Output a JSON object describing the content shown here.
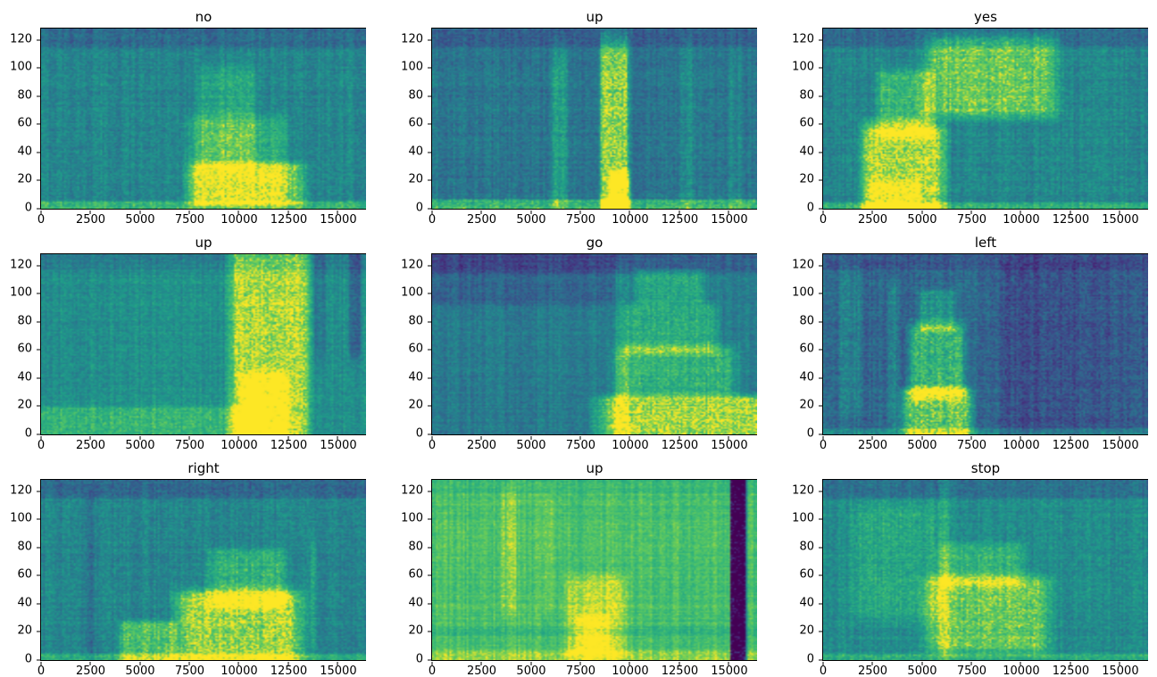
{
  "figure": {
    "background": "#ffffff",
    "text_color": "#000000"
  },
  "chart_data": {
    "type": "heatmap",
    "colormap": "viridis",
    "colors": {
      "low": "#440154",
      "mid": "#21918c",
      "high": "#fde725"
    },
    "layout": {
      "rows": 3,
      "cols": 3,
      "grid": false,
      "legend": "none"
    },
    "xlim": [
      0,
      16400
    ],
    "ylim": [
      0,
      128
    ],
    "xticks": [
      0,
      2500,
      5000,
      7500,
      10000,
      12500,
      15000
    ],
    "yticks": [
      0,
      20,
      40,
      60,
      80,
      100,
      120
    ],
    "xlabel": "",
    "ylabel": "",
    "panels": [
      {
        "title": "no",
        "base": 0.52,
        "noise": 0.09,
        "features": [
          [
            0,
            16400,
            116,
            128,
            -0.13
          ],
          [
            0,
            16400,
            0,
            5,
            0.22
          ],
          [
            7800,
            12000,
            8,
            60,
            0.18
          ],
          [
            8200,
            10600,
            35,
            95,
            0.15
          ],
          [
            8000,
            12800,
            5,
            30,
            0.32
          ]
        ]
      },
      {
        "title": "up",
        "base": 0.44,
        "noise": 0.09,
        "features": [
          [
            0,
            16400,
            116,
            128,
            -0.1
          ],
          [
            0,
            16400,
            0,
            6,
            0.3
          ],
          [
            8600,
            9800,
            5,
            110,
            0.45
          ],
          [
            9000,
            9900,
            0,
            25,
            0.3
          ],
          [
            6100,
            6800,
            10,
            105,
            0.18
          ],
          [
            12600,
            13200,
            0,
            110,
            0.1
          ],
          [
            15000,
            15600,
            0,
            110,
            0.08
          ]
        ]
      },
      {
        "title": "yes",
        "base": 0.52,
        "noise": 0.09,
        "features": [
          [
            0,
            16400,
            116,
            128,
            -0.13
          ],
          [
            2300,
            5800,
            0,
            55,
            0.42
          ],
          [
            3000,
            5300,
            55,
            95,
            0.25
          ],
          [
            5800,
            11200,
            70,
            118,
            0.33
          ],
          [
            0,
            16400,
            0,
            4,
            0.2
          ],
          [
            2500,
            4700,
            0,
            18,
            0.15
          ]
        ]
      },
      {
        "title": "up",
        "base": 0.56,
        "noise": 0.08,
        "features": [
          [
            0,
            16400,
            118,
            128,
            -0.08
          ],
          [
            9900,
            13200,
            0,
            126,
            0.38
          ],
          [
            10300,
            12300,
            0,
            40,
            0.2
          ],
          [
            0,
            10000,
            0,
            18,
            0.18
          ],
          [
            15600,
            16100,
            60,
            128,
            -0.18
          ],
          [
            13800,
            14300,
            60,
            128,
            -0.1
          ]
        ]
      },
      {
        "title": "go",
        "base": 0.47,
        "noise": 0.08,
        "features": [
          [
            0,
            16400,
            116,
            128,
            -0.12
          ],
          [
            0,
            9000,
            95,
            128,
            -0.1
          ],
          [
            9200,
            16400,
            0,
            25,
            0.45
          ],
          [
            9800,
            14800,
            30,
            60,
            0.25
          ],
          [
            10200,
            14000,
            60,
            90,
            0.22
          ],
          [
            10500,
            13500,
            95,
            115,
            0.2
          ],
          [
            9300,
            9900,
            0,
            110,
            0.15
          ]
        ]
      },
      {
        "title": "left",
        "base": 0.38,
        "noise": 0.1,
        "features": [
          [
            0,
            16400,
            118,
            128,
            -0.08
          ],
          [
            4300,
            7200,
            0,
            30,
            0.45
          ],
          [
            4600,
            6900,
            30,
            75,
            0.35
          ],
          [
            5000,
            6500,
            75,
            100,
            0.2
          ],
          [
            900,
            1900,
            20,
            110,
            0.1
          ],
          [
            3300,
            3700,
            10,
            100,
            0.12
          ],
          [
            9200,
            12700,
            0,
            120,
            -0.1
          ],
          [
            13500,
            16400,
            0,
            120,
            -0.06
          ],
          [
            0,
            16400,
            0,
            4,
            0.15
          ]
        ]
      },
      {
        "title": "right",
        "base": 0.52,
        "noise": 0.09,
        "features": [
          [
            0,
            16400,
            116,
            128,
            -0.13
          ],
          [
            4200,
            6600,
            0,
            25,
            0.3
          ],
          [
            7400,
            12600,
            0,
            45,
            0.4
          ],
          [
            8800,
            12000,
            40,
            75,
            0.22
          ],
          [
            2300,
            2600,
            0,
            110,
            -0.12
          ],
          [
            13600,
            13900,
            10,
            80,
            0.12
          ],
          [
            0,
            16400,
            0,
            4,
            0.18
          ]
        ]
      },
      {
        "title": "up",
        "base": 0.8,
        "noise": 0.06,
        "features": [
          [
            0,
            16400,
            120,
            128,
            -0.05
          ],
          [
            15100,
            15850,
            0,
            128,
            -0.85,
            0.04
          ],
          [
            7000,
            9600,
            5,
            55,
            0.15
          ],
          [
            7400,
            8800,
            8,
            30,
            0.12
          ],
          [
            3500,
            4200,
            40,
            115,
            0.08
          ],
          [
            5600,
            6100,
            40,
            115,
            0.07
          ],
          [
            0,
            16400,
            0,
            6,
            0.1
          ],
          [
            0,
            16400,
            18,
            24,
            -0.06
          ]
        ]
      },
      {
        "title": "stop",
        "base": 0.55,
        "noise": 0.09,
        "features": [
          [
            0,
            16400,
            116,
            128,
            -0.13
          ],
          [
            5700,
            10800,
            10,
            55,
            0.3
          ],
          [
            6200,
            9800,
            55,
            80,
            0.18
          ],
          [
            1800,
            5600,
            35,
            105,
            0.12
          ],
          [
            5900,
            6300,
            0,
            120,
            0.1
          ],
          [
            0,
            16400,
            0,
            4,
            0.15
          ]
        ]
      }
    ]
  }
}
